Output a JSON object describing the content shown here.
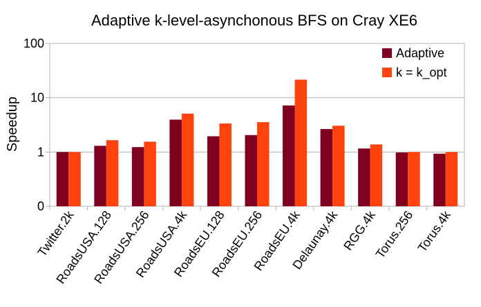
{
  "chart_data": {
    "type": "bar",
    "title": "Adaptive k-level-asynchonous BFS on Cray XE6",
    "xlabel": "",
    "ylabel": "Speedup",
    "y_scale": "log",
    "yticks": [
      "0",
      "1",
      "10",
      "100"
    ],
    "categories": [
      "Twitter.2k",
      "RoadsUSA.128",
      "RoadsUSA.256",
      "RoadsUSA.4k",
      "RoadsEU.128",
      "RoadsEU.256",
      "RoadsEU.4k",
      "Delaunay.4k",
      "RGG.4k",
      "Torus.256",
      "Torus.4k"
    ],
    "series": [
      {
        "name": "Adaptive",
        "color": "#800020",
        "values": [
          1.0,
          1.3,
          1.23,
          3.95,
          1.95,
          2.05,
          7.2,
          2.65,
          1.16,
          0.98,
          0.93
        ]
      },
      {
        "name": "k = k_opt",
        "color": "#FF420E",
        "values": [
          1.0,
          1.65,
          1.55,
          5.1,
          3.35,
          3.55,
          21.5,
          3.05,
          1.38,
          1.0,
          1.0
        ]
      }
    ],
    "grid": true,
    "legend_position": "top-right"
  }
}
